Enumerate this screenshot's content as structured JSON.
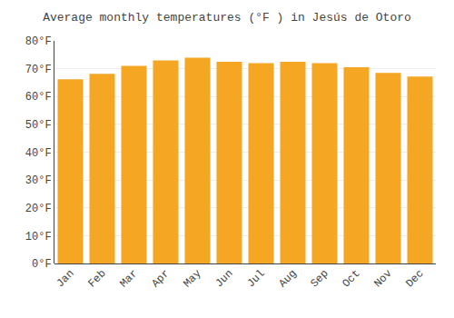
{
  "chart_data": {
    "type": "bar",
    "title": "Average monthly temperatures (°F ) in Jesús de Otoro",
    "categories": [
      "Jan",
      "Feb",
      "Mar",
      "Apr",
      "May",
      "Jun",
      "Jul",
      "Aug",
      "Sep",
      "Oct",
      "Nov",
      "Dec"
    ],
    "values": [
      66.2,
      68.2,
      71.0,
      73.0,
      74.0,
      72.5,
      72.0,
      72.5,
      72.0,
      70.5,
      68.5,
      67.2
    ],
    "color": "#F5A623",
    "ylim": [
      0,
      80
    ],
    "yticks": [
      {
        "value": 0,
        "label": "0°F"
      },
      {
        "value": 10,
        "label": "10°F"
      },
      {
        "value": 20,
        "label": "20°F"
      },
      {
        "value": 30,
        "label": "30°F"
      },
      {
        "value": 40,
        "label": "40°F"
      },
      {
        "value": 50,
        "label": "50°F"
      },
      {
        "value": 60,
        "label": "60°F"
      },
      {
        "value": 70,
        "label": "70°F"
      },
      {
        "value": 80,
        "label": "80°F"
      }
    ],
    "grid": true
  }
}
